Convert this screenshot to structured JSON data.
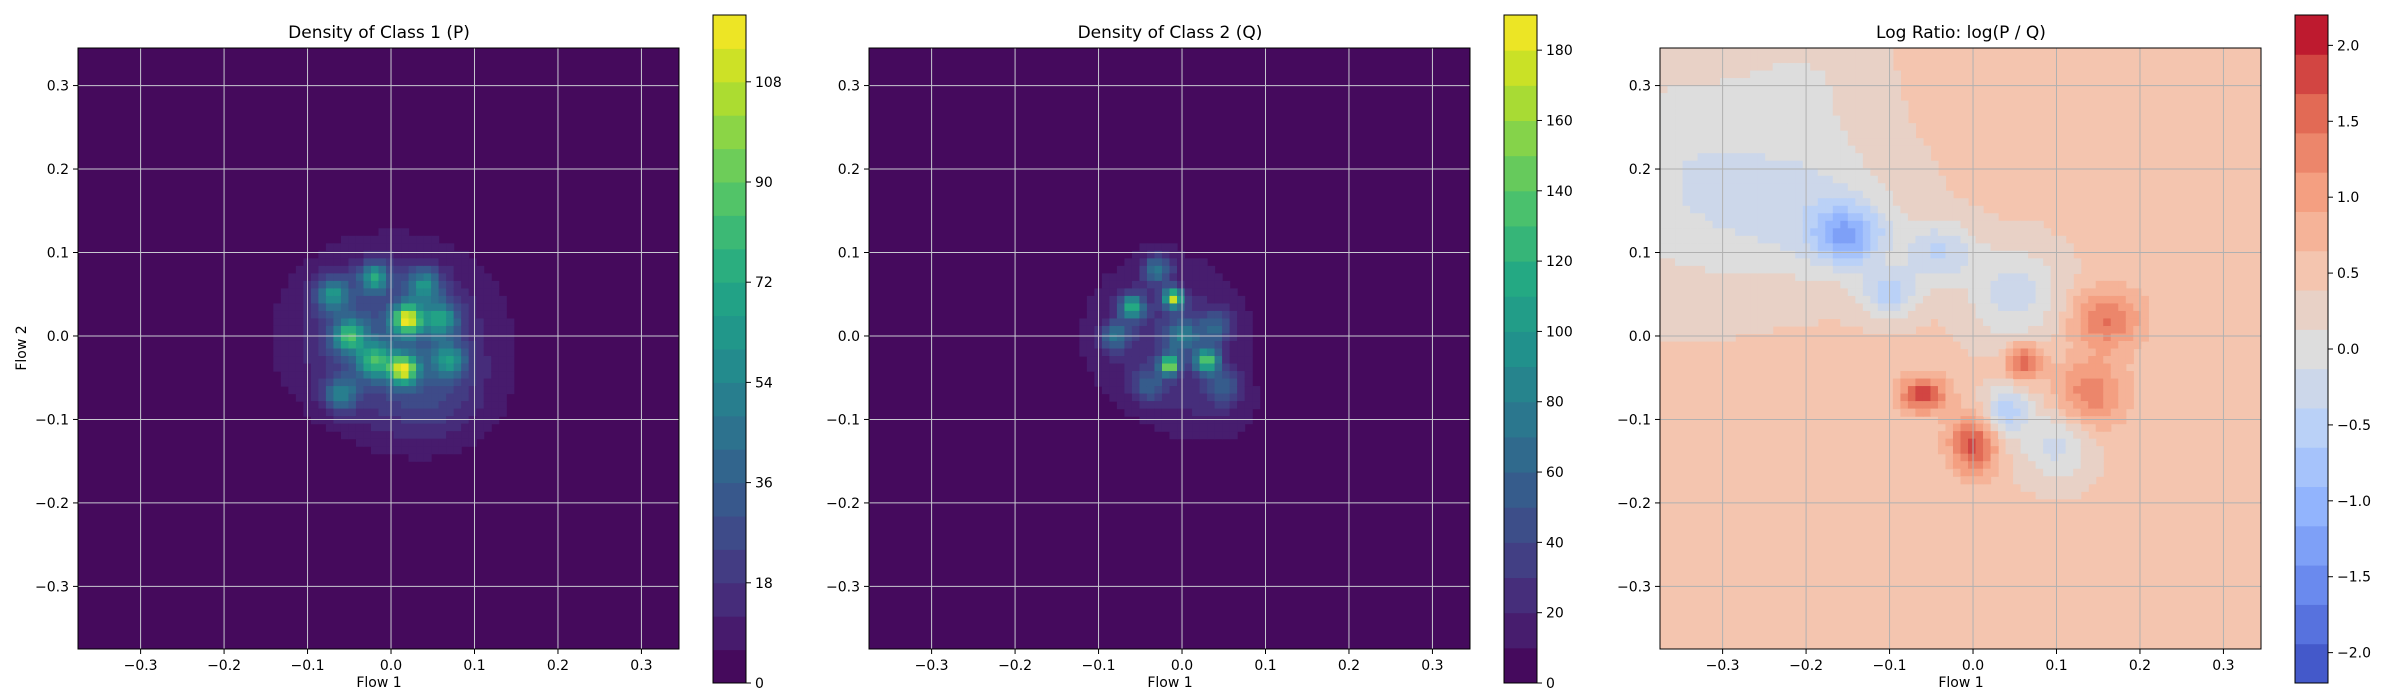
{
  "chart_data": [
    {
      "type": "heatmap",
      "title": "Density of Class 1 (P)",
      "xlabel": "Flow 1",
      "ylabel": "Flow 2",
      "xlim": [
        -0.375,
        0.345
      ],
      "ylim": [
        -0.375,
        0.345
      ],
      "xticks": [
        -0.3,
        -0.2,
        -0.1,
        0.0,
        0.1,
        0.2,
        0.3
      ],
      "yticks": [
        -0.3,
        -0.2,
        -0.1,
        0.0,
        0.1,
        0.2,
        0.3
      ],
      "tick_labels": [
        "−0.3",
        "−0.2",
        "−0.1",
        "0.0",
        "0.1",
        "0.2",
        "0.3"
      ],
      "grid": true,
      "colormap": "viridis",
      "colorbar": {
        "min": 0,
        "max": 120,
        "levels": 20,
        "ticks": [
          0,
          18,
          36,
          54,
          72,
          90,
          108
        ],
        "tick_labels": [
          "0",
          "18",
          "36",
          "54",
          "72",
          "90",
          "108"
        ]
      },
      "hotspots": [
        {
          "x": -0.02,
          "y": 0.07,
          "value": 55,
          "sx": 0.012,
          "sy": 0.012
        },
        {
          "x": 0.02,
          "y": 0.02,
          "value": 95,
          "sx": 0.012,
          "sy": 0.012
        },
        {
          "x": -0.07,
          "y": 0.05,
          "value": 50,
          "sx": 0.014,
          "sy": 0.014
        },
        {
          "x": -0.05,
          "y": 0.0,
          "value": 60,
          "sx": 0.014,
          "sy": 0.014
        },
        {
          "x": 0.015,
          "y": -0.04,
          "value": 90,
          "sx": 0.012,
          "sy": 0.012
        },
        {
          "x": -0.02,
          "y": -0.03,
          "value": 55,
          "sx": 0.014,
          "sy": 0.014
        },
        {
          "x": 0.06,
          "y": 0.02,
          "value": 50,
          "sx": 0.014,
          "sy": 0.014
        },
        {
          "x": 0.07,
          "y": -0.03,
          "value": 45,
          "sx": 0.014,
          "sy": 0.014
        },
        {
          "x": -0.06,
          "y": -0.07,
          "value": 40,
          "sx": 0.014,
          "sy": 0.014
        },
        {
          "x": 0.04,
          "y": 0.06,
          "value": 45,
          "sx": 0.014,
          "sy": 0.014
        },
        {
          "x": 0.0,
          "y": 0.0,
          "value": 30,
          "sx": 0.08,
          "sy": 0.07
        },
        {
          "x": 0.05,
          "y": -0.08,
          "value": 12,
          "sx": 0.05,
          "sy": 0.04
        }
      ]
    },
    {
      "type": "heatmap",
      "title": "Density of Class 2 (Q)",
      "xlabel": "Flow 1",
      "ylabel": "",
      "xlim": [
        -0.375,
        0.345
      ],
      "ylim": [
        -0.375,
        0.345
      ],
      "xticks": [
        -0.3,
        -0.2,
        -0.1,
        0.0,
        0.1,
        0.2,
        0.3
      ],
      "yticks": [
        -0.3,
        -0.2,
        -0.1,
        0.0,
        0.1,
        0.2,
        0.3
      ],
      "tick_labels": [
        "−0.3",
        "−0.2",
        "−0.1",
        "0.0",
        "0.1",
        "0.2",
        "0.3"
      ],
      "grid": true,
      "colormap": "viridis",
      "colorbar": {
        "min": 0,
        "max": 190,
        "levels": 19,
        "ticks": [
          0,
          20,
          40,
          60,
          80,
          100,
          120,
          140,
          160,
          180
        ],
        "tick_labels": [
          "0",
          "20",
          "40",
          "60",
          "80",
          "100",
          "120",
          "140",
          "160",
          "180"
        ]
      },
      "hotspots": [
        {
          "x": -0.01,
          "y": 0.045,
          "value": 150,
          "sx": 0.008,
          "sy": 0.008
        },
        {
          "x": -0.015,
          "y": -0.035,
          "value": 140,
          "sx": 0.008,
          "sy": 0.008
        },
        {
          "x": 0.03,
          "y": -0.03,
          "value": 120,
          "sx": 0.01,
          "sy": 0.01
        },
        {
          "x": -0.06,
          "y": 0.035,
          "value": 100,
          "sx": 0.01,
          "sy": 0.01
        },
        {
          "x": -0.03,
          "y": 0.08,
          "value": 60,
          "sx": 0.012,
          "sy": 0.012
        },
        {
          "x": -0.08,
          "y": 0.0,
          "value": 55,
          "sx": 0.012,
          "sy": 0.012
        },
        {
          "x": 0.0,
          "y": 0.0,
          "value": 55,
          "sx": 0.014,
          "sy": 0.014
        },
        {
          "x": 0.04,
          "y": 0.01,
          "value": 45,
          "sx": 0.014,
          "sy": 0.014
        },
        {
          "x": -0.04,
          "y": -0.06,
          "value": 40,
          "sx": 0.014,
          "sy": 0.014
        },
        {
          "x": 0.05,
          "y": -0.06,
          "value": 40,
          "sx": 0.014,
          "sy": 0.014
        },
        {
          "x": -0.02,
          "y": 0.0,
          "value": 28,
          "sx": 0.07,
          "sy": 0.07
        },
        {
          "x": 0.04,
          "y": -0.09,
          "value": 12,
          "sx": 0.04,
          "sy": 0.03
        }
      ]
    },
    {
      "type": "heatmap",
      "title": "Log Ratio: log(P / Q)",
      "xlabel": "Flow 1",
      "ylabel": "",
      "xlim": [
        -0.375,
        0.345
      ],
      "ylim": [
        -0.375,
        0.345
      ],
      "xticks": [
        -0.3,
        -0.2,
        -0.1,
        0.0,
        0.1,
        0.2,
        0.3
      ],
      "yticks": [
        -0.3,
        -0.2,
        -0.1,
        0.0,
        0.1,
        0.2,
        0.3
      ],
      "tick_labels": [
        "−0.3",
        "−0.2",
        "−0.1",
        "0.0",
        "0.1",
        "0.2",
        "0.3"
      ],
      "grid": true,
      "colormap": "coolwarm",
      "colorbar": {
        "min": -2.2,
        "max": 2.2,
        "levels": 17,
        "ticks": [
          -2.0,
          -1.5,
          -1.0,
          -0.5,
          0.0,
          0.5,
          1.0,
          1.5,
          2.0
        ],
        "tick_labels": [
          "−2.0",
          "−1.5",
          "−1.0",
          "−0.5",
          "0.0",
          "0.5",
          "1.0",
          "1.5",
          "2.0"
        ]
      },
      "background_value": 0.45,
      "hotspots": [
        {
          "x": -0.15,
          "y": 0.12,
          "value": -1.3,
          "sx": 0.03,
          "sy": 0.025
        },
        {
          "x": -0.2,
          "y": 0.15,
          "value": -0.6,
          "sx": 0.08,
          "sy": 0.06
        },
        {
          "x": -0.1,
          "y": 0.05,
          "value": -0.9,
          "sx": 0.025,
          "sy": 0.02
        },
        {
          "x": 0.05,
          "y": 0.05,
          "value": -0.7,
          "sx": 0.04,
          "sy": 0.04
        },
        {
          "x": 0.04,
          "y": -0.09,
          "value": -1.0,
          "sx": 0.02,
          "sy": 0.02
        },
        {
          "x": 0.1,
          "y": -0.13,
          "value": -0.7,
          "sx": 0.03,
          "sy": 0.03
        },
        {
          "x": -0.04,
          "y": 0.1,
          "value": -0.8,
          "sx": 0.03,
          "sy": 0.025
        },
        {
          "x": -0.06,
          "y": -0.07,
          "value": 1.4,
          "sx": 0.02,
          "sy": 0.015
        },
        {
          "x": 0.0,
          "y": -0.13,
          "value": 1.3,
          "sx": 0.02,
          "sy": 0.025
        },
        {
          "x": 0.06,
          "y": -0.03,
          "value": 1.2,
          "sx": 0.015,
          "sy": 0.015
        },
        {
          "x": 0.16,
          "y": 0.02,
          "value": 1.0,
          "sx": 0.03,
          "sy": 0.025
        },
        {
          "x": 0.14,
          "y": -0.07,
          "value": 0.9,
          "sx": 0.03,
          "sy": 0.03
        },
        {
          "x": -0.35,
          "y": 0.2,
          "value": -0.5,
          "sx": 0.08,
          "sy": 0.1
        },
        {
          "x": -0.2,
          "y": 0.3,
          "value": -0.3,
          "sx": 0.06,
          "sy": 0.06
        }
      ]
    }
  ]
}
